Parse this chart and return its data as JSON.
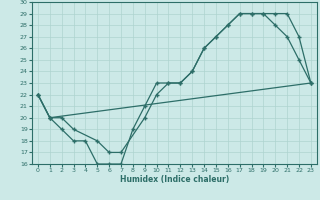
{
  "title": "",
  "xlabel": "Humidex (Indice chaleur)",
  "xlim": [
    -0.5,
    23.5
  ],
  "ylim": [
    16,
    30
  ],
  "xticks": [
    0,
    1,
    2,
    3,
    4,
    5,
    6,
    7,
    8,
    9,
    10,
    11,
    12,
    13,
    14,
    15,
    16,
    17,
    18,
    19,
    20,
    21,
    22,
    23
  ],
  "yticks": [
    16,
    17,
    18,
    19,
    20,
    21,
    22,
    23,
    24,
    25,
    26,
    27,
    28,
    29,
    30
  ],
  "bg_color": "#cce9e7",
  "line_color": "#2d6e68",
  "grid_color": "#aed4d0",
  "line1_x": [
    0,
    1,
    2,
    3,
    4,
    5,
    6,
    7,
    8,
    9,
    10,
    11,
    12,
    13,
    14,
    15,
    16,
    17,
    18,
    19,
    20,
    21,
    22,
    23
  ],
  "line1_y": [
    22,
    20,
    19,
    18,
    18,
    16,
    16,
    16,
    19,
    21,
    23,
    23,
    23,
    24,
    26,
    27,
    28,
    29,
    29,
    29,
    28,
    27,
    25,
    23
  ],
  "line2_x": [
    0,
    1,
    2,
    3,
    5,
    6,
    7,
    9,
    10,
    11,
    12,
    13,
    14,
    15,
    16,
    17,
    18,
    19,
    20,
    21,
    22,
    23
  ],
  "line2_y": [
    22,
    20,
    20,
    19,
    18,
    17,
    17,
    20,
    22,
    23,
    23,
    24,
    26,
    27,
    28,
    29,
    29,
    29,
    29,
    29,
    27,
    23
  ],
  "line3_x": [
    0,
    1,
    23
  ],
  "line3_y": [
    22,
    20,
    23
  ]
}
